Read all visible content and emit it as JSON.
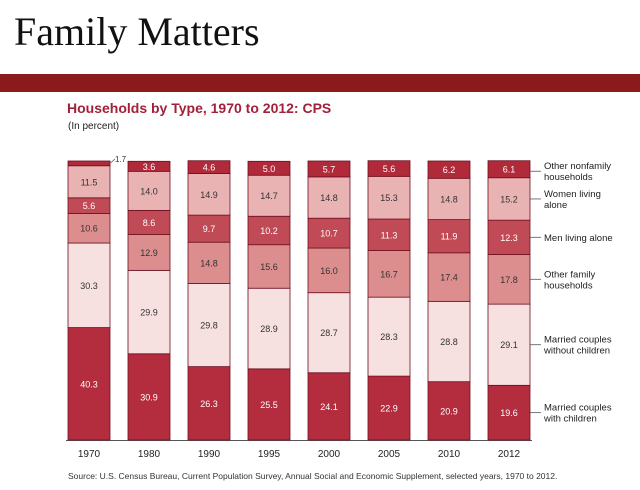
{
  "slide": {
    "title": "Family Matters"
  },
  "chart_data": {
    "type": "bar",
    "stacked": true,
    "orientation": "vertical",
    "title": "Households by Type, 1970 to 2012: CPS",
    "subtitle": "(In percent)",
    "categories": [
      "1970",
      "1980",
      "1990",
      "1995",
      "2000",
      "2005",
      "2010",
      "2012"
    ],
    "series": [
      {
        "name": "Married couples with children",
        "color": "#b32d3e",
        "values": [
          40.3,
          30.9,
          26.3,
          25.5,
          24.1,
          22.9,
          20.9,
          19.6
        ]
      },
      {
        "name": "Married couples without children",
        "color": "#f6e0e0",
        "values": [
          30.3,
          29.9,
          29.8,
          28.9,
          28.7,
          28.3,
          28.8,
          29.1
        ]
      },
      {
        "name": "Other family households",
        "color": "#dc8d8d",
        "values": [
          10.6,
          12.9,
          14.8,
          15.6,
          16.0,
          16.7,
          17.4,
          17.8
        ]
      },
      {
        "name": "Men living alone",
        "color": "#c04a55",
        "values": [
          5.6,
          8.6,
          9.7,
          10.2,
          10.7,
          11.3,
          11.9,
          12.3
        ]
      },
      {
        "name": "Women living alone",
        "color": "#eab3b3",
        "values": [
          11.5,
          14.0,
          14.9,
          14.7,
          14.8,
          15.3,
          14.8,
          15.2
        ]
      },
      {
        "name": "Other nonfamily households",
        "color": "#b02a3a",
        "values": [
          1.7,
          3.6,
          4.6,
          5.0,
          5.7,
          5.6,
          6.2,
          6.1
        ]
      }
    ],
    "legend_position": "right",
    "source": "Source: U.S. Census Bureau, Current Population Survey, Annual Social and Economic Supplement, selected years, 1970 to 2012."
  }
}
